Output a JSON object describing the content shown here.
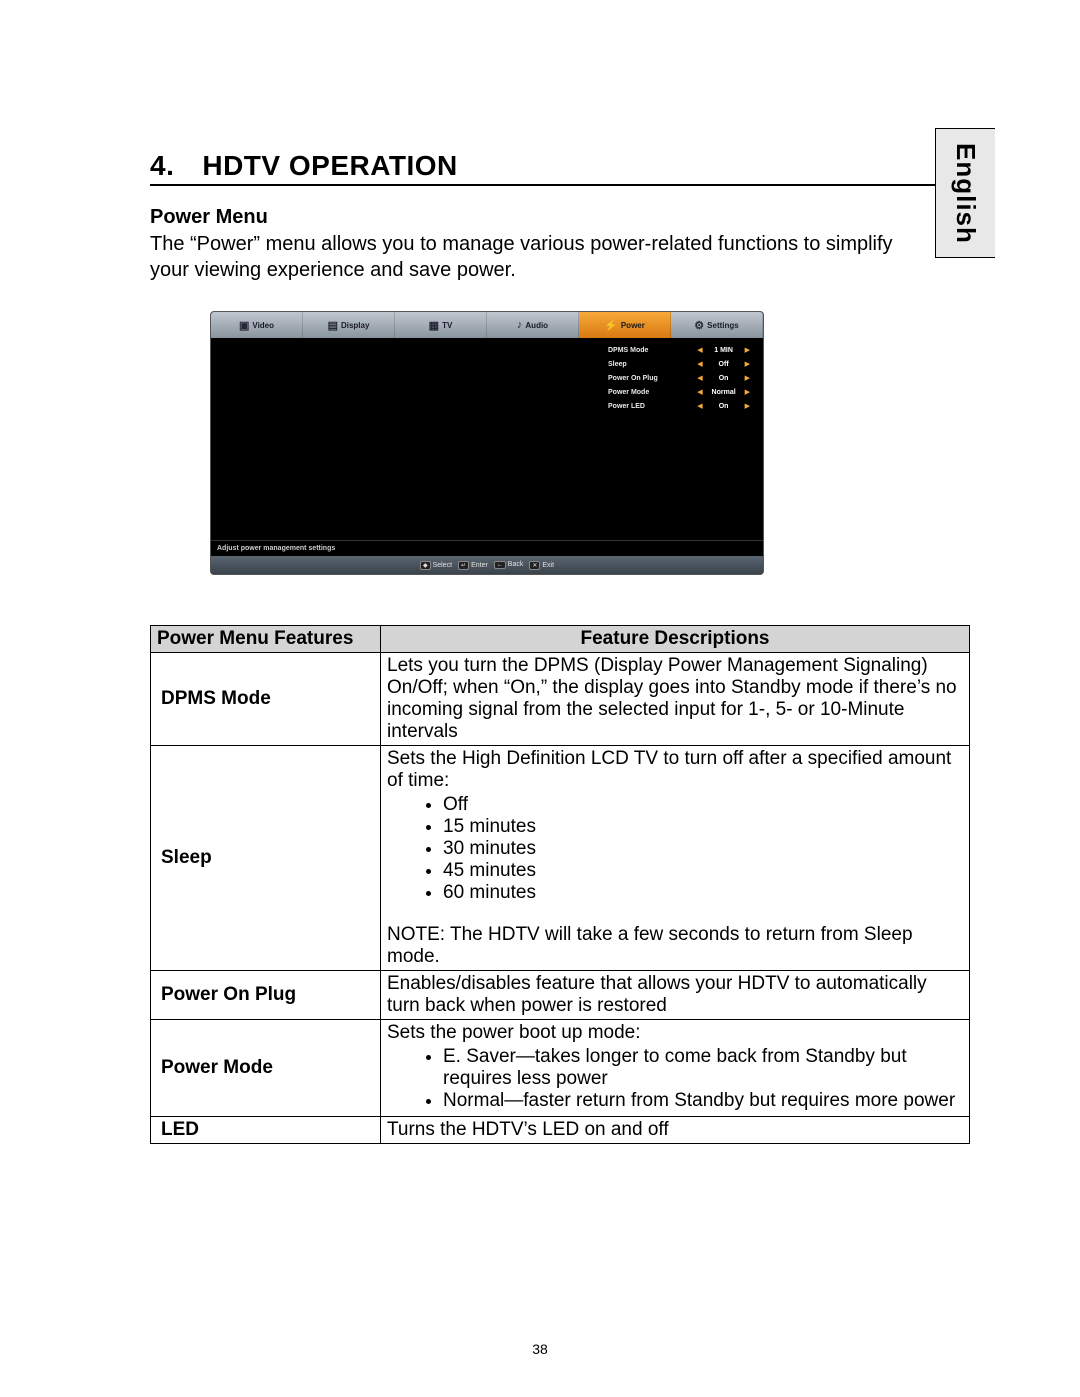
{
  "language_tab": "English",
  "section_number": "4.",
  "section_title": "HDTV OPERATION",
  "subtitle": "Power Menu",
  "intro": "The “Power” menu allows you to manage various power-related functions to simplify your viewing experience and save power.",
  "osd": {
    "tabs": [
      {
        "label": "Video",
        "icon": "▣"
      },
      {
        "label": "Display",
        "icon": "▤"
      },
      {
        "label": "TV",
        "icon": "▦"
      },
      {
        "label": "Audio",
        "icon": "♪"
      },
      {
        "label": "Power",
        "icon": "⚡",
        "active": true
      },
      {
        "label": "Settings",
        "icon": "⚙"
      }
    ],
    "options": [
      {
        "label": "DPMS Mode",
        "value": "1 MIN"
      },
      {
        "label": "Sleep",
        "value": "Off"
      },
      {
        "label": "Power On Plug",
        "value": "On"
      },
      {
        "label": "Power Mode",
        "value": "Normal"
      },
      {
        "label": "Power LED",
        "value": "On"
      }
    ],
    "hint": "Adjust power management settings",
    "footer": [
      {
        "key": "◆",
        "label": "Select"
      },
      {
        "key": "↵",
        "label": "Enter"
      },
      {
        "key": "←",
        "label": "Back"
      },
      {
        "key": "✕",
        "label": "Exit"
      }
    ],
    "colors": {
      "active_tab_bg": "#e88b1e",
      "arrow_color": "#f7a93a",
      "topbar_bg": "#9aa4ae",
      "body_bg": "#000000"
    }
  },
  "table": {
    "header_feat": "Power Menu Features",
    "header_desc": "Feature Descriptions",
    "header_bg": "#d4d4d4",
    "rows": [
      {
        "feature": "DPMS Mode",
        "desc_pre": "Lets you turn the DPMS (Display Power Management Signaling) On/Off; when “On,” the display goes into Standby mode if there’s no incoming signal from the selected input for 1-, 5- or 10-Minute intervals"
      },
      {
        "feature": "Sleep",
        "desc_pre": "Sets the High Definition LCD TV to turn off after a specified amount of time:",
        "bullets": [
          "Off",
          "15 minutes",
          "30 minutes",
          "45 minutes",
          "60 minutes"
        ],
        "desc_post": "NOTE: The HDTV will take a few seconds to return from Sleep mode."
      },
      {
        "feature": "Power On Plug",
        "desc_pre": "Enables/disables feature that allows your HDTV to automatically turn back when power is restored"
      },
      {
        "feature": "Power Mode",
        "desc_pre": "Sets the power boot up mode:",
        "bullets": [
          "E. Saver—takes longer to come back from Standby but requires less power",
          "Normal—faster return from Standby but requires more power"
        ]
      },
      {
        "feature": "LED",
        "desc_pre": "Turns the HDTV’s LED on and off"
      }
    ]
  },
  "page_number": "38"
}
